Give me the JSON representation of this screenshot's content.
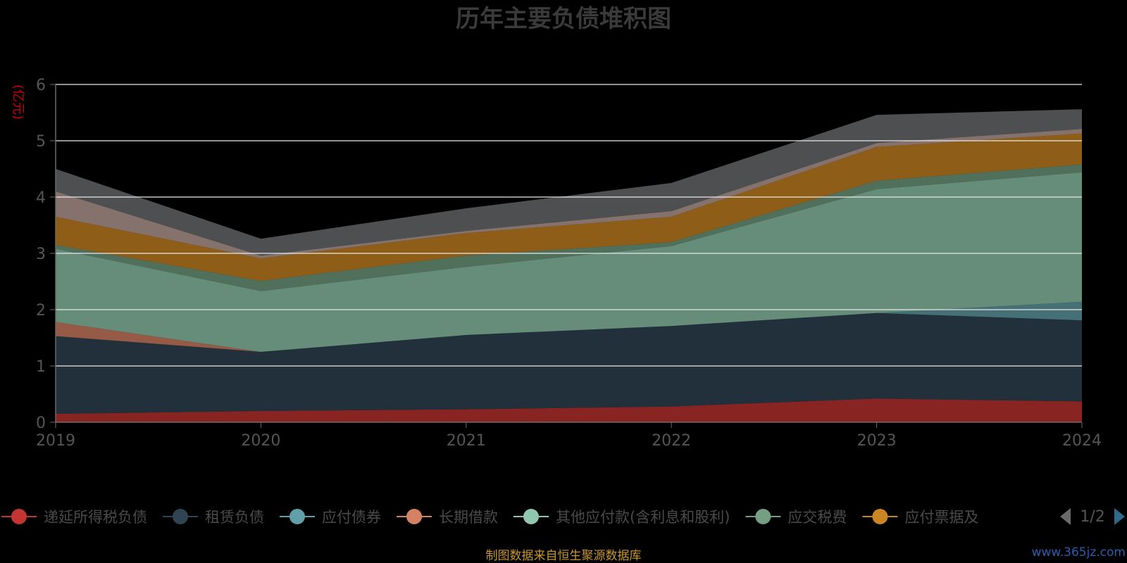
{
  "chart_data": {
    "type": "area",
    "title": "历年主要负债堆积图",
    "unit_label": "(亿元)",
    "x": [
      "2019",
      "2020",
      "2021",
      "2022",
      "2023",
      "2024"
    ],
    "ylim": [
      0,
      6
    ],
    "yticks": [
      "0",
      "1",
      "2",
      "3",
      "4",
      "5",
      "6"
    ],
    "grid": true,
    "stacked": true,
    "series": [
      {
        "name": "递延所得税负债",
        "color": "#c23531",
        "values": [
          0.15,
          0.2,
          0.23,
          0.28,
          0.42,
          0.37
        ]
      },
      {
        "name": "租赁负债",
        "color": "#2f4554",
        "values": [
          1.38,
          1.05,
          1.32,
          1.43,
          1.52,
          1.44
        ]
      },
      {
        "name": "应付债券",
        "color": "#61a0a8",
        "values": [
          0.0,
          0.0,
          0.0,
          0.0,
          0.0,
          0.33
        ]
      },
      {
        "name": "长期借款",
        "color": "#d48265",
        "values": [
          0.25,
          0.0,
          0.0,
          0.0,
          0.0,
          0.0
        ]
      },
      {
        "name": "其他应付款(含利息和股利)",
        "color": "#91c7ae",
        "values": [
          1.3,
          1.08,
          1.21,
          1.42,
          2.2,
          2.3
        ]
      },
      {
        "name": "应交税费",
        "color": "#749f83",
        "values": [
          0.07,
          0.18,
          0.2,
          0.07,
          0.15,
          0.14
        ]
      },
      {
        "name": "应付票据及应付账款",
        "color": "#ca8622",
        "values": [
          0.5,
          0.4,
          0.4,
          0.45,
          0.6,
          0.55
        ]
      },
      {
        "name": "",
        "color": "#bda29a",
        "values": [
          0.45,
          0.05,
          0.04,
          0.1,
          0.07,
          0.08
        ]
      },
      {
        "name": "",
        "color": "#6e7074",
        "values": [
          0.4,
          0.3,
          0.4,
          0.5,
          0.5,
          0.35
        ]
      }
    ]
  },
  "legend": {
    "visible_labels": [
      "递延所得税负债",
      "租赁负债",
      "应付债券",
      "长期借款",
      "其他应付款(含利息和股利)",
      "应交税费",
      "应付票据及"
    ],
    "page": "1/2"
  },
  "footer": {
    "source": "制图数据来自恒生聚源数据库",
    "watermark": "www.365jz.com"
  }
}
